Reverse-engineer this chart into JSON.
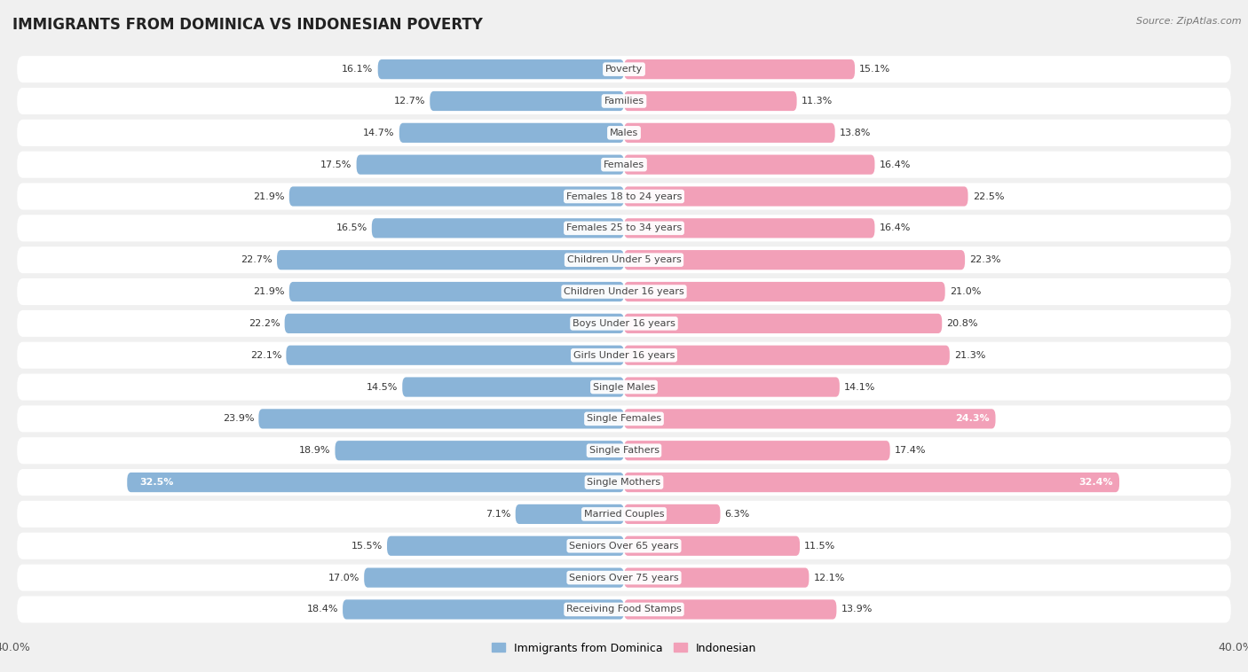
{
  "title": "IMMIGRANTS FROM DOMINICA VS INDONESIAN POVERTY",
  "source": "Source: ZipAtlas.com",
  "categories": [
    "Poverty",
    "Families",
    "Males",
    "Females",
    "Females 18 to 24 years",
    "Females 25 to 34 years",
    "Children Under 5 years",
    "Children Under 16 years",
    "Boys Under 16 years",
    "Girls Under 16 years",
    "Single Males",
    "Single Females",
    "Single Fathers",
    "Single Mothers",
    "Married Couples",
    "Seniors Over 65 years",
    "Seniors Over 75 years",
    "Receiving Food Stamps"
  ],
  "dominica_values": [
    16.1,
    12.7,
    14.7,
    17.5,
    21.9,
    16.5,
    22.7,
    21.9,
    22.2,
    22.1,
    14.5,
    23.9,
    18.9,
    32.5,
    7.1,
    15.5,
    17.0,
    18.4
  ],
  "indonesian_values": [
    15.1,
    11.3,
    13.8,
    16.4,
    22.5,
    16.4,
    22.3,
    21.0,
    20.8,
    21.3,
    14.1,
    24.3,
    17.4,
    32.4,
    6.3,
    11.5,
    12.1,
    13.9
  ],
  "dominica_color": "#8ab4d8",
  "indonesian_color": "#f2a0b8",
  "dominica_label": "Immigrants from Dominica",
  "indonesian_label": "Indonesian",
  "xlim": 40.0,
  "background_color": "#f0f0f0",
  "row_bg_color": "#e8e8e8",
  "bar_bg_color": "#ffffff",
  "title_fontsize": 12,
  "label_fontsize": 8,
  "value_fontsize": 8,
  "bar_height": 0.62,
  "inside_label_categories": [
    "Single Mothers"
  ],
  "inside_label_right_categories": [
    "Single Females"
  ]
}
